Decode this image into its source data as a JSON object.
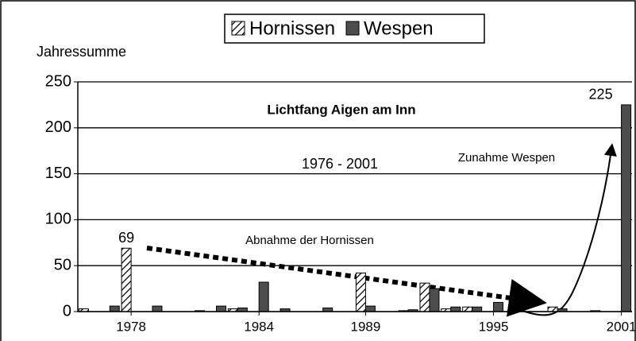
{
  "chart_data": {
    "type": "bar",
    "title": "Lichtfang Aigen am Inn",
    "subtitle": "1976 - 2001",
    "y_label": "Jahressumme",
    "annotations": [
      "Abnahme der Hornissen",
      "Zunahme Wespen"
    ],
    "categories": [
      null,
      null,
      "1978",
      null,
      null,
      null,
      null,
      null,
      "1984",
      null,
      null,
      null,
      null,
      "1989",
      null,
      null,
      null,
      null,
      null,
      "1995",
      null,
      null,
      null,
      null,
      null,
      "2001"
    ],
    "series": [
      {
        "name": "Hornissen",
        "color": "#000000",
        "hatch": true,
        "values": [
          3,
          0,
          69,
          0,
          0,
          0,
          0,
          3,
          0,
          0,
          0,
          0,
          0,
          42,
          0,
          1,
          31,
          3,
          5,
          0,
          0,
          0,
          5,
          0,
          1,
          0
        ]
      },
      {
        "name": "Wespen",
        "color": "#4d4d4d",
        "hatch": false,
        "values": [
          0,
          6,
          0,
          6,
          0,
          1,
          6,
          4,
          32,
          3,
          0,
          4,
          0,
          6,
          0,
          2,
          25,
          5,
          5,
          10,
          0,
          0,
          3,
          0,
          0,
          225
        ]
      }
    ],
    "labeled_points": [
      {
        "series": 0,
        "index": 2
      },
      {
        "series": 1,
        "index": 25
      }
    ],
    "ylim": [
      0,
      250
    ],
    "yticks": [
      0,
      50,
      100,
      150,
      200,
      250
    ],
    "grid": true,
    "legend": "top"
  }
}
